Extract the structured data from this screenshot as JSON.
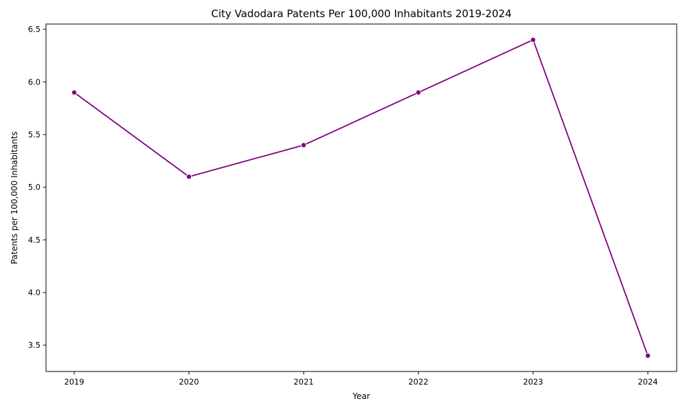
{
  "chart_data": {
    "type": "line",
    "title": "City Vadodara Patents Per 100,000 Inhabitants 2019-2024",
    "xlabel": "Year",
    "ylabel": "Patents per 100,000 Inhabitants",
    "x": [
      "2019",
      "2020",
      "2021",
      "2022",
      "2023",
      "2024"
    ],
    "series": [
      {
        "values": [
          5.9,
          5.1,
          5.4,
          5.9,
          6.4,
          3.4
        ]
      }
    ],
    "yticks": [
      "3.5",
      "4.0",
      "4.5",
      "5.0",
      "5.5",
      "6.0",
      "6.5"
    ],
    "ylim": [
      3.25,
      6.55
    ],
    "grid": false,
    "legend": "none",
    "line_color": "#800080",
    "marker": "circle"
  }
}
